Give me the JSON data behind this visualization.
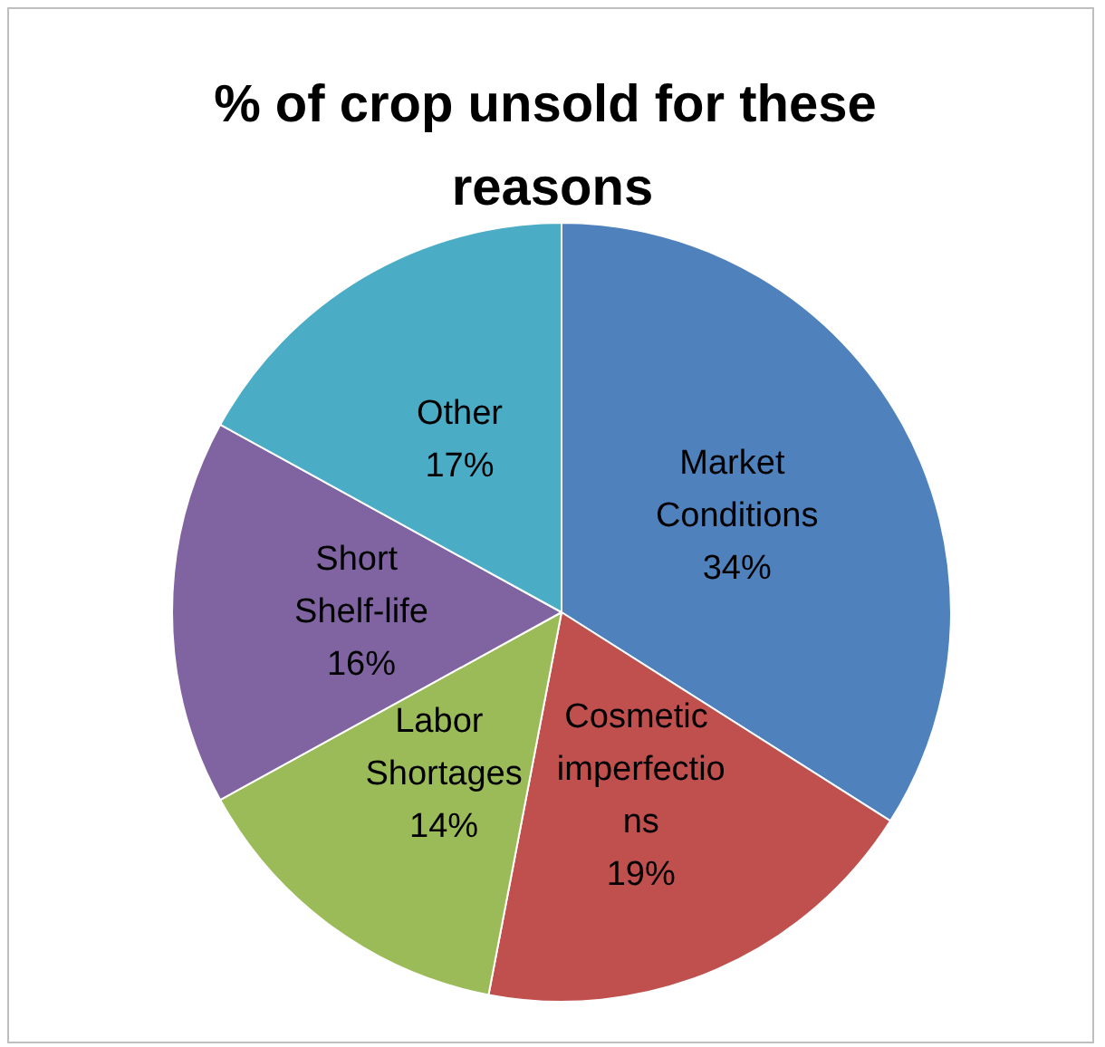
{
  "chart_data": {
    "type": "pie",
    "title": "% of crop unsold for these reasons",
    "categories": [
      "Market Conditions",
      "Cosmetic imperfections",
      "Labor Shortages",
      "Short Shelf-life",
      "Other"
    ],
    "values": [
      34,
      19,
      14,
      16,
      17
    ],
    "value_labels": [
      "34%",
      "19%",
      "14%",
      "16%",
      "17%"
    ],
    "colors": [
      "#4f81bd",
      "#c0504d",
      "#9bbb59",
      "#8064a2",
      "#4bacc6"
    ],
    "legend": false
  }
}
